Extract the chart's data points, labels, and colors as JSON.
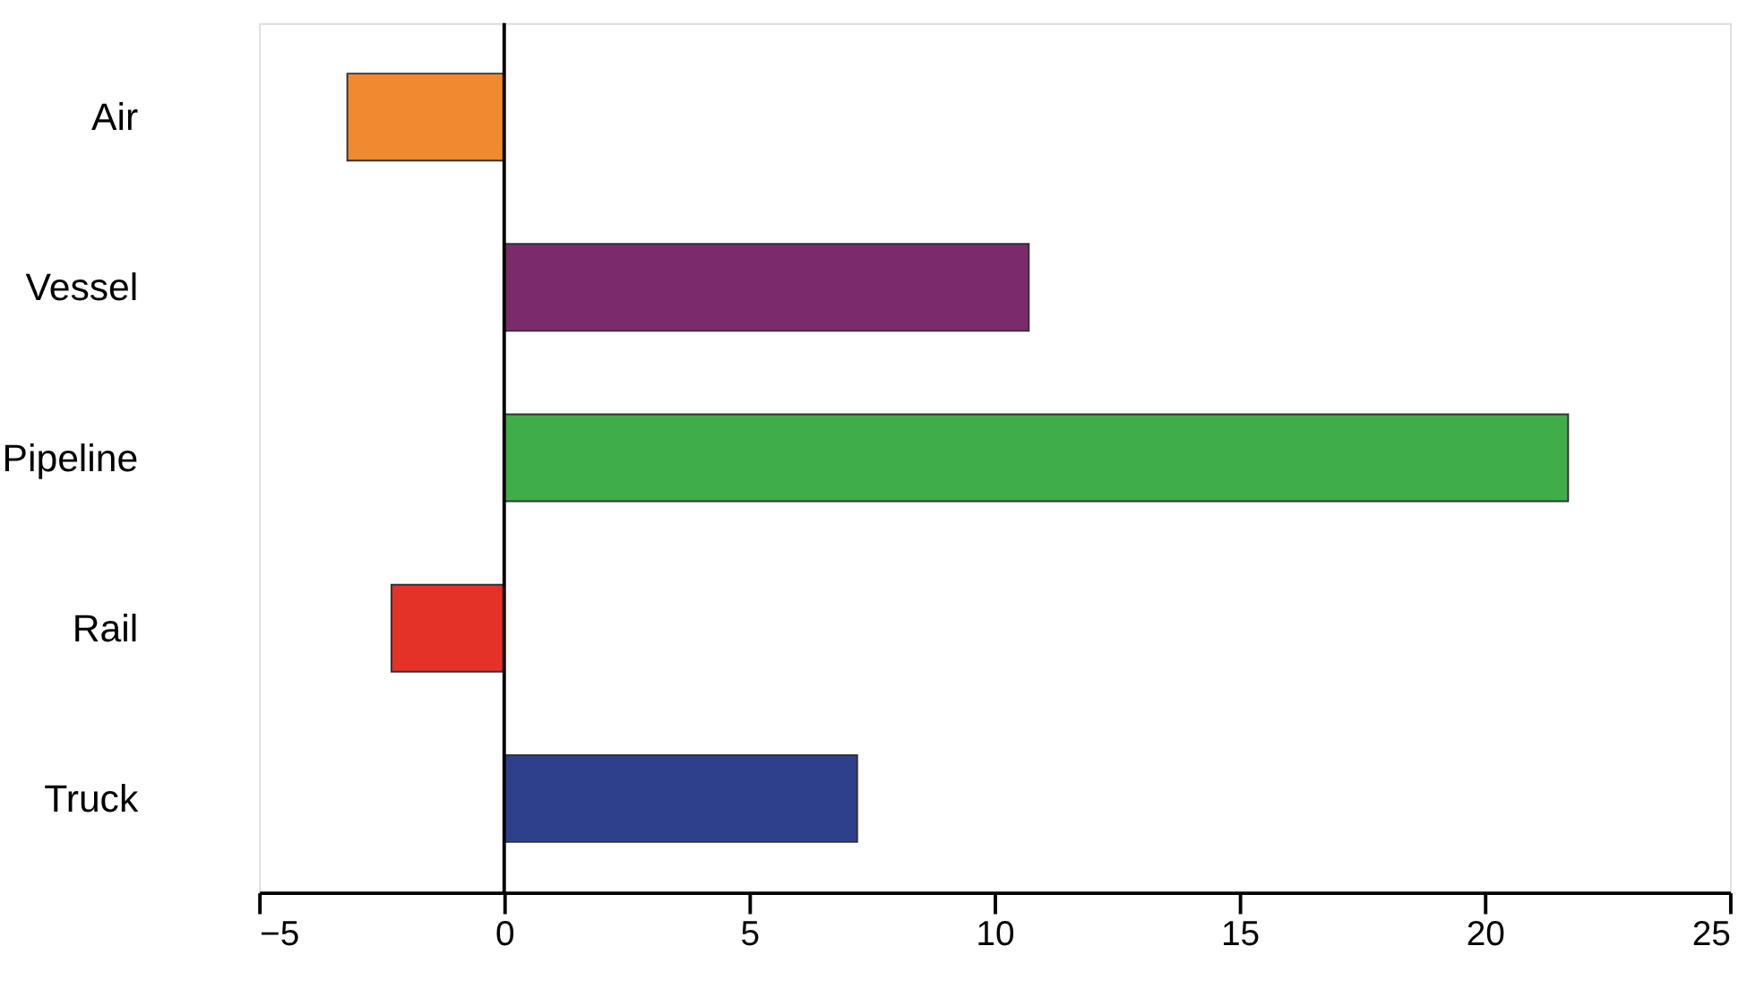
{
  "chart_data": {
    "type": "bar",
    "orientation": "horizontal",
    "categories": [
      "Air",
      "Vessel",
      "Pipeline",
      "Rail",
      "Truck"
    ],
    "values": [
      -3.2,
      10.7,
      21.7,
      -2.3,
      7.2
    ],
    "colors": [
      "#f0892f",
      "#7b2a6b",
      "#3fae49",
      "#e53228",
      "#2e3f8c"
    ],
    "xlim": [
      -5,
      25
    ],
    "xticks": [
      -5,
      0,
      5,
      10,
      15,
      20,
      25
    ],
    "grid": false,
    "ref_lines": [
      {
        "axis": "x",
        "value": 0,
        "color": "#000000"
      }
    ]
  }
}
